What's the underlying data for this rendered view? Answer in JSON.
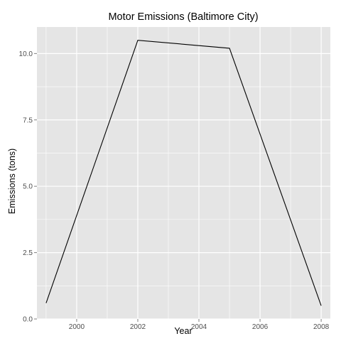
{
  "chart_data": {
    "type": "line",
    "title": "Motor Emissions (Baltimore City)",
    "xlabel": "Year",
    "ylabel": "Emissions (tons)",
    "x": [
      1999,
      2002,
      2005,
      2008
    ],
    "series": [
      {
        "values": [
          0.6,
          10.5,
          10.2,
          0.5
        ]
      }
    ],
    "xlim": [
      1998.7,
      2008.3
    ],
    "ylim": [
      0,
      11
    ],
    "x_ticks": [
      2000,
      2002,
      2004,
      2006,
      2008
    ],
    "x_tick_labels": [
      "2000",
      "2002",
      "2004",
      "2006",
      "2008"
    ],
    "y_ticks": [
      0,
      2.5,
      5,
      7.5,
      10
    ],
    "y_tick_labels": [
      "0.0",
      "2.5",
      "5.0",
      "7.5",
      "10.0"
    ],
    "grid": true,
    "panel_color": "#e5e5e5",
    "grid_color": "#ffffff",
    "line_color": "#000000"
  }
}
